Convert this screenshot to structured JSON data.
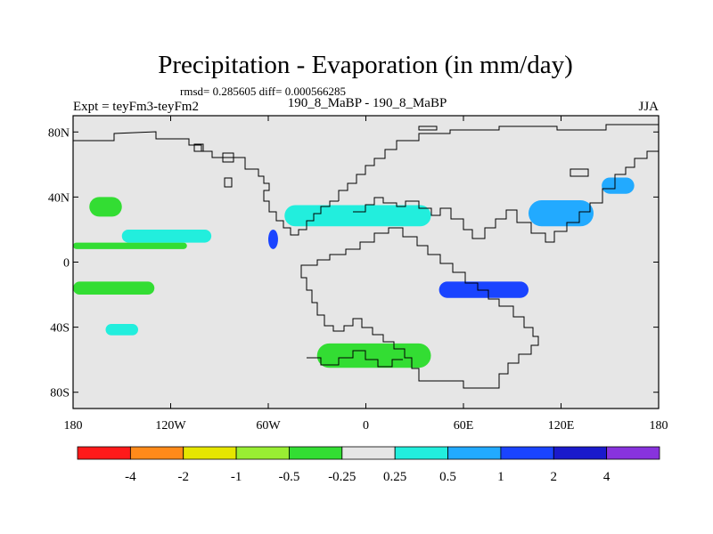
{
  "chart_data": {
    "type": "heatmap",
    "title": "Precipitation - Evaporation (in mm/day)",
    "stats": "rmsd= 0.285605 diff= 0.000566285",
    "experiment_left": "Expt = teyFm3-teyFm2",
    "experiment_center": "190_8_MaBP - 190_8_MaBP",
    "season": "JJA",
    "projection": "cylindrical equidistant",
    "xlim": [
      -180,
      180
    ],
    "ylim": [
      -90,
      90
    ],
    "x_ticks": [
      {
        "value": -180,
        "label": "180"
      },
      {
        "value": -120,
        "label": "120W"
      },
      {
        "value": -60,
        "label": "60W"
      },
      {
        "value": 0,
        "label": "0"
      },
      {
        "value": 60,
        "label": "60E"
      },
      {
        "value": 120,
        "label": "120E"
      },
      {
        "value": 180,
        "label": "180"
      }
    ],
    "y_ticks": [
      {
        "value": 80,
        "label": "80N"
      },
      {
        "value": 40,
        "label": "40N"
      },
      {
        "value": 0,
        "label": "0"
      },
      {
        "value": -40,
        "label": "40S"
      },
      {
        "value": -80,
        "label": "80S"
      }
    ],
    "colorbar": {
      "colors": [
        "#ff1a1a",
        "#ff8a1a",
        "#e6e600",
        "#99ee33",
        "#33dd33",
        "#e6e6e6",
        "#22eedd",
        "#22aaff",
        "#1a44ff",
        "#1a1acc",
        "#8833dd"
      ],
      "levels": [
        {
          "value": -4,
          "label": "-4"
        },
        {
          "value": -2,
          "label": "-2"
        },
        {
          "value": -1,
          "label": "-1"
        },
        {
          "value": -0.5,
          "label": "-0.5"
        },
        {
          "value": -0.25,
          "label": "-0.25"
        },
        {
          "value": 0.25,
          "label": "0.25"
        },
        {
          "value": 0.5,
          "label": "0.5"
        },
        {
          "value": 1,
          "label": "1"
        },
        {
          "value": 2,
          "label": "2"
        },
        {
          "value": 4,
          "label": "4"
        }
      ]
    },
    "anomaly_regions": [
      {
        "name": "n-pacific-subtropical-band",
        "lon": [
          -180,
          -110
        ],
        "lat": [
          8,
          12
        ],
        "value": -0.4
      },
      {
        "name": "n-pacific-east-band",
        "lon": [
          -150,
          -95
        ],
        "lat": [
          12,
          20
        ],
        "value": 0.3
      },
      {
        "name": "tropical-pacific-band",
        "lon": [
          -180,
          -130
        ],
        "lat": [
          -20,
          -12
        ],
        "value": -0.4
      },
      {
        "name": "n-pacific-midlat-blob",
        "lon": [
          -170,
          -150
        ],
        "lat": [
          28,
          40
        ],
        "value": -0.3
      },
      {
        "name": "n-atlantic-diagonal-band",
        "lon": [
          -50,
          40
        ],
        "lat": [
          22,
          35
        ],
        "value": 0.4
      },
      {
        "name": "central-america-core",
        "lon": [
          -60,
          -54
        ],
        "lat": [
          8,
          20
        ],
        "value": 1.5
      },
      {
        "name": "s-atlantic-trough",
        "lon": [
          45,
          100
        ],
        "lat": [
          -22,
          -12
        ],
        "value": 1.3
      },
      {
        "name": "asia-monsoon-cluster",
        "lon": [
          100,
          140
        ],
        "lat": [
          22,
          38
        ],
        "value": 0.9
      },
      {
        "name": "far-east-cells",
        "lon": [
          145,
          165
        ],
        "lat": [
          42,
          52
        ],
        "value": 1.0
      },
      {
        "name": "southern-ocean-band",
        "lon": [
          -30,
          40
        ],
        "lat": [
          -65,
          -50
        ],
        "value": -0.3
      },
      {
        "name": "s-pacific-blob",
        "lon": [
          -160,
          -140
        ],
        "lat": [
          -45,
          -38
        ],
        "value": 0.3
      }
    ]
  }
}
